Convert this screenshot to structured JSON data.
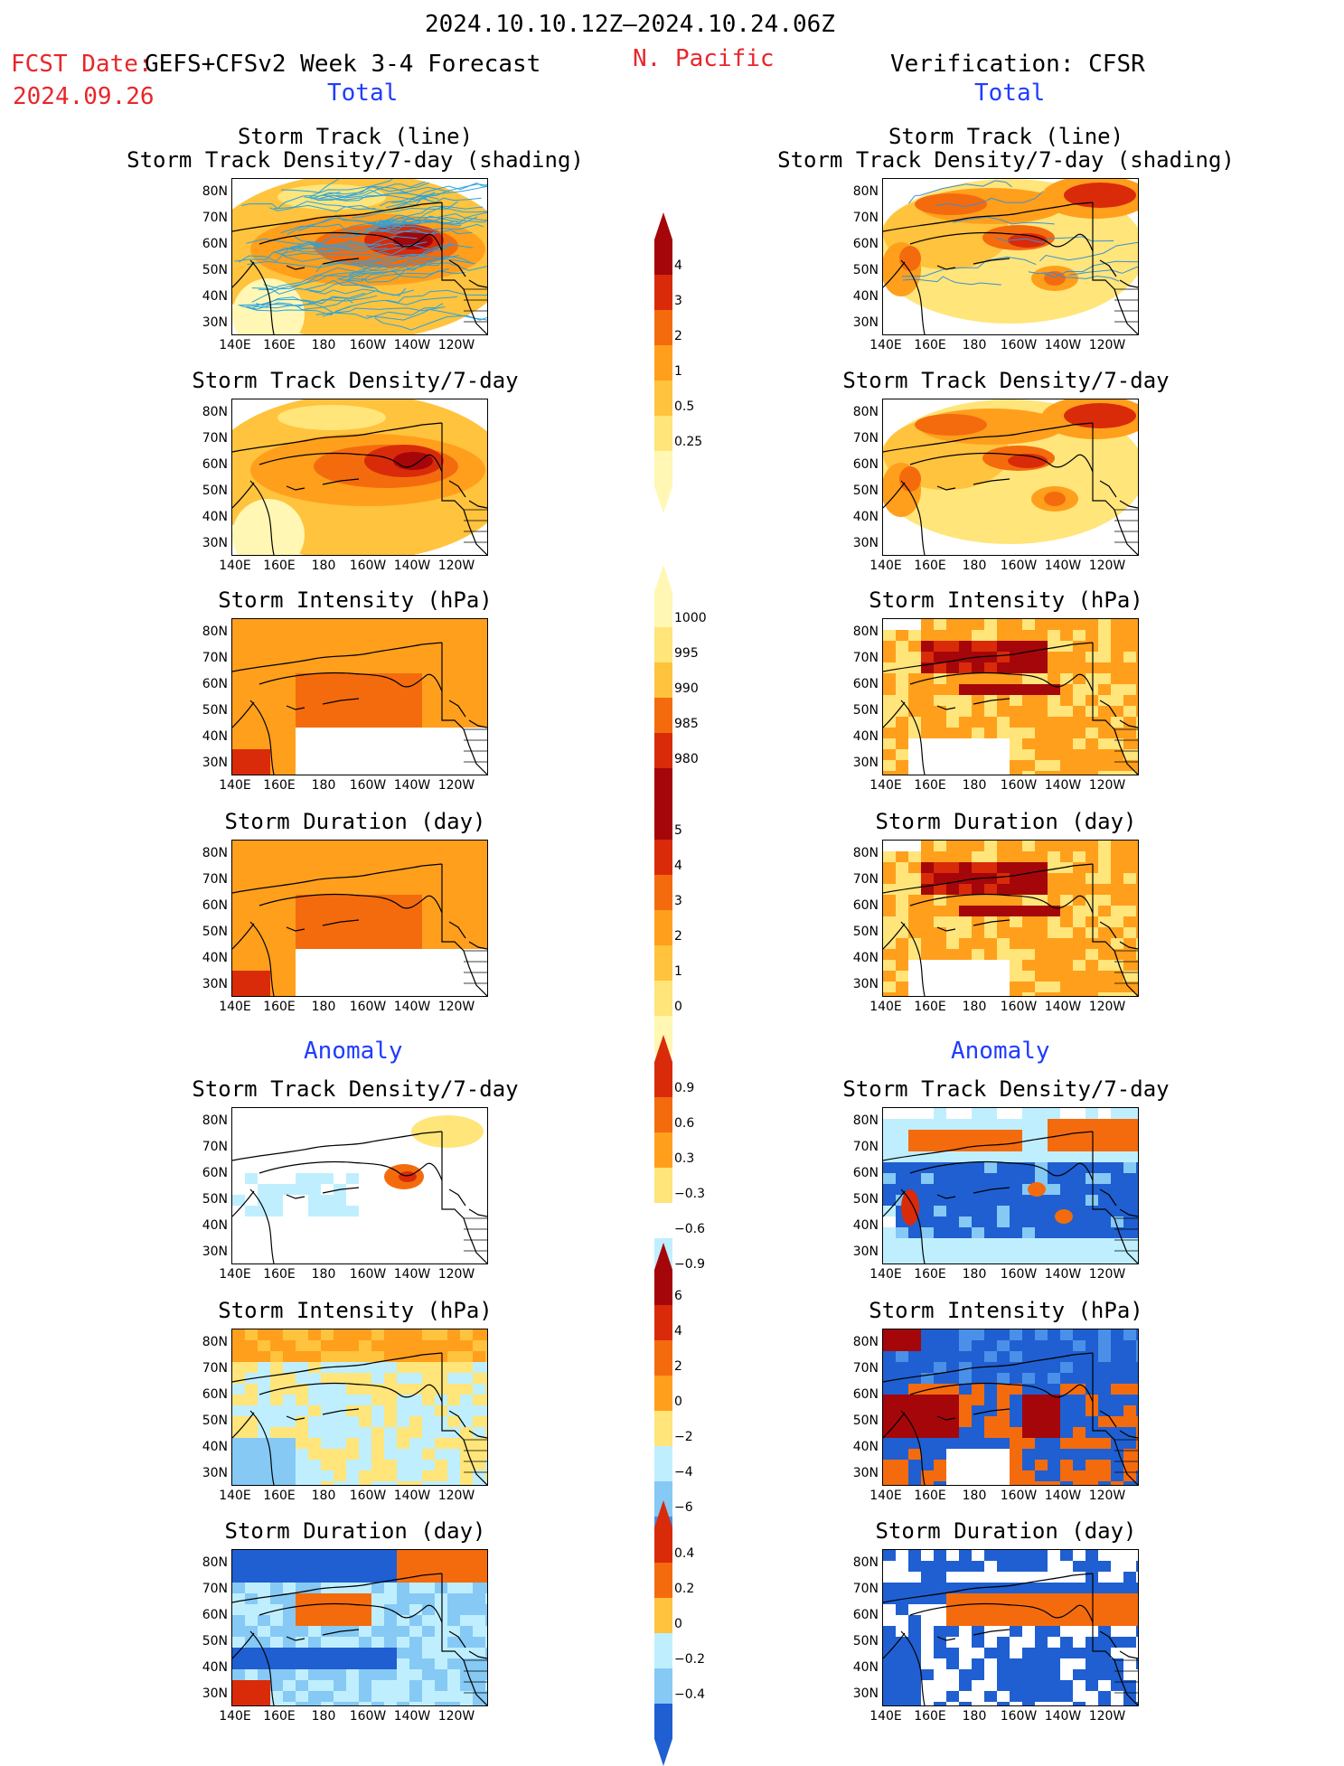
{
  "header": {
    "period": "2024.10.10.12Z–2024.10.24.06Z",
    "fcst_label": "FCST Date:",
    "fcst_date": "2024.09.26",
    "product": "GEFS+CFSv2 Week 3-4 Forecast",
    "region": "N. Pacific",
    "verification": "Verification: CFSR"
  },
  "sections": {
    "total_left": "Total",
    "total_right": "Total",
    "anomaly_left": "Anomaly",
    "anomaly_right": "Anomaly"
  },
  "panel_titles": {
    "track_line": "Storm Track (line)",
    "track_shading": "Storm Track Density/7-day (shading)",
    "density": "Storm Track Density/7-day",
    "intensity": "Storm Intensity (hPa)",
    "duration": "Storm Duration (day)"
  },
  "axes": {
    "lat": [
      "80N",
      "70N",
      "60N",
      "50N",
      "40N",
      "30N"
    ],
    "lon": [
      "140E",
      "160E",
      "180",
      "160W",
      "140W",
      "120W"
    ]
  },
  "colorbars": {
    "density_total": [
      "4",
      "3",
      "2",
      "1",
      "0.5",
      "0.25"
    ],
    "intensity_total": [
      "1000",
      "995",
      "990",
      "985",
      "980"
    ],
    "duration_total": [
      "5",
      "4",
      "3",
      "2",
      "1",
      "0"
    ],
    "density_anom": [
      "0.9",
      "0.6",
      "0.3",
      "−0.3",
      "−0.6",
      "−0.9"
    ],
    "intensity_anom": [
      "6",
      "4",
      "2",
      "0",
      "−2",
      "−4",
      "−6"
    ],
    "duration_anom": [
      "0.4",
      "0.2",
      "0",
      "−0.2",
      "−0.4"
    ]
  },
  "colors": {
    "title_red": "#e8262b",
    "section_blue": "#1f3cff",
    "warm_scale": [
      "#fff7b3",
      "#ffe57a",
      "#ffc33d",
      "#ff9f1c",
      "#f46b0e",
      "#d92b0a",
      "#a5060a"
    ],
    "cool_scale": [
      "#bfefff",
      "#86c9f5",
      "#4a90e8",
      "#1f5fd1"
    ],
    "track_line": "#29a3e0",
    "track_line_obs": "#3b8fd6"
  }
}
